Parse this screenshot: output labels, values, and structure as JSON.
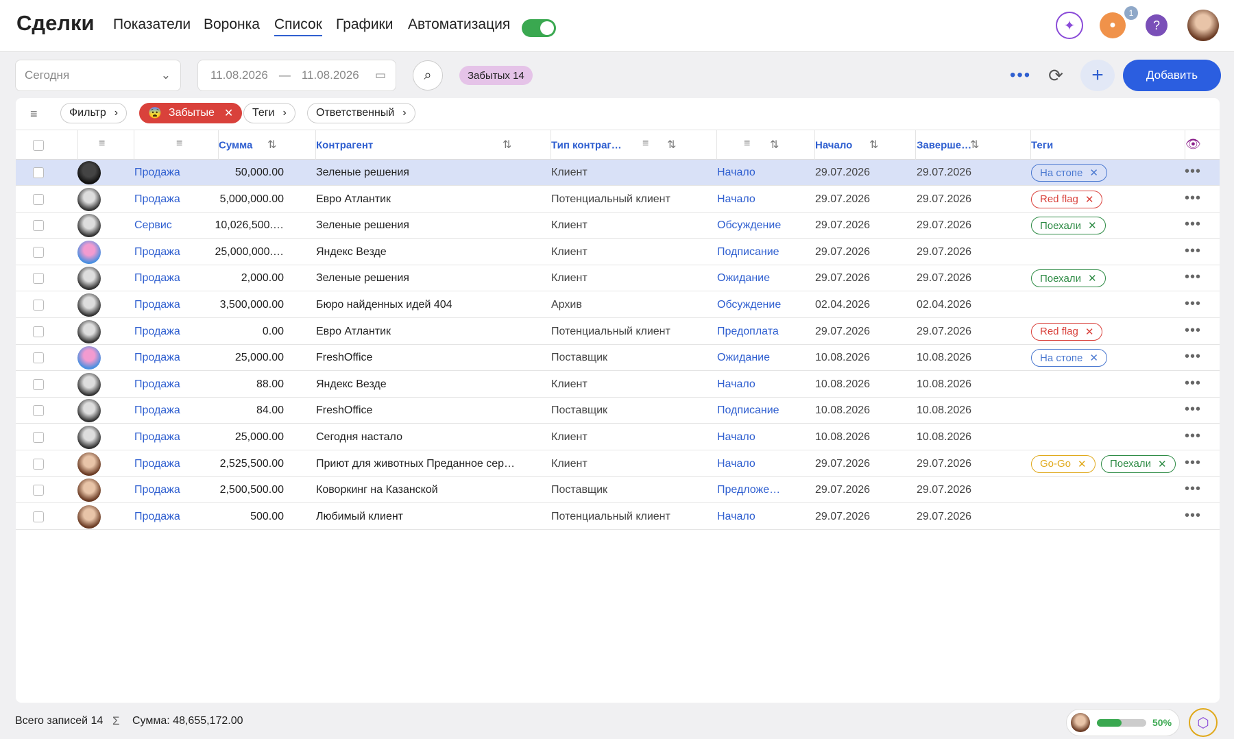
{
  "header": {
    "title": "Сделки",
    "tabs": [
      "Показатели",
      "Воронка",
      "Список",
      "Графики",
      "Автоматизация"
    ],
    "notification_count": "1"
  },
  "toolbar": {
    "period": "Сегодня",
    "date_from": "11.08.2026",
    "date_sep": "—",
    "date_to": "11.08.2026",
    "forgotten_badge": "Забытых 14",
    "add_button": "Добавить"
  },
  "filters": [
    "Фильтр",
    "Забытые",
    "Теги",
    "Ответственный"
  ],
  "table": {
    "columns": [
      "Сумма",
      "Контрагент",
      "Тип контраг…",
      "Начало",
      "Заверше…",
      "Теги"
    ],
    "rows": [
      {
        "deal_type": "Продажа",
        "amount": "50,000.00",
        "counterparty": "Зеленые решения",
        "counterparty_type": "Клиент",
        "stage": "Начало",
        "start": "29.07.2026",
        "end": "29.07.2026",
        "tags": [
          {
            "text": "На стопе",
            "color": "#4a78d0"
          }
        ]
      },
      {
        "deal_type": "Продажа",
        "amount": "5,000,000.00",
        "counterparty": "Евро Атлантик",
        "counterparty_type": "Потенциальный клиент",
        "stage": "Начало",
        "start": "29.07.2026",
        "end": "29.07.2026",
        "tags": [
          {
            "text": "Red flag",
            "color": "#d9413b"
          }
        ]
      },
      {
        "deal_type": "Сервис",
        "amount": "10,026,500.…",
        "counterparty": "Зеленые решения",
        "counterparty_type": "Клиент",
        "stage": "Обсуждение",
        "start": "29.07.2026",
        "end": "29.07.2026",
        "tags": [
          {
            "text": "Поехали",
            "color": "#2e8b45"
          }
        ]
      },
      {
        "deal_type": "Продажа",
        "amount": "25,000,000.…",
        "counterparty": "Яндекс Везде",
        "counterparty_type": "Клиент",
        "stage": "Подписание",
        "start": "29.07.2026",
        "end": "29.07.2026",
        "tags": []
      },
      {
        "deal_type": "Продажа",
        "amount": "2,000.00",
        "counterparty": "Зеленые решения",
        "counterparty_type": "Клиент",
        "stage": "Ожидание",
        "start": "29.07.2026",
        "end": "29.07.2026",
        "tags": [
          {
            "text": "Поехали",
            "color": "#2e8b45"
          }
        ]
      },
      {
        "deal_type": "Продажа",
        "amount": "3,500,000.00",
        "counterparty": "Бюро найденных идей 404",
        "counterparty_type": "Архив",
        "stage": "Обсуждение",
        "start": "02.04.2026",
        "end": "02.04.2026",
        "tags": []
      },
      {
        "deal_type": "Продажа",
        "amount": "0.00",
        "counterparty": "Евро Атлантик",
        "counterparty_type": "Потенциальный клиент",
        "stage": "Предоплата",
        "start": "29.07.2026",
        "end": "29.07.2026",
        "tags": [
          {
            "text": "Red flag",
            "color": "#d9413b"
          }
        ]
      },
      {
        "deal_type": "Продажа",
        "amount": "25,000.00",
        "counterparty": "FreshOffice",
        "counterparty_type": "Поставщик",
        "stage": "Ожидание",
        "start": "10.08.2026",
        "end": "10.08.2026",
        "tags": [
          {
            "text": "На стопе",
            "color": "#4a78d0"
          }
        ]
      },
      {
        "deal_type": "Продажа",
        "amount": "88.00",
        "counterparty": "Яндекс Везде",
        "counterparty_type": "Клиент",
        "stage": "Начало",
        "start": "10.08.2026",
        "end": "10.08.2026",
        "tags": []
      },
      {
        "deal_type": "Продажа",
        "amount": "84.00",
        "counterparty": "FreshOffice",
        "counterparty_type": "Поставщик",
        "stage": "Подписание",
        "start": "10.08.2026",
        "end": "10.08.2026",
        "tags": []
      },
      {
        "deal_type": "Продажа",
        "amount": "25,000.00",
        "counterparty": "Сегодня настало",
        "counterparty_type": "Клиент",
        "stage": "Начало",
        "start": "10.08.2026",
        "end": "10.08.2026",
        "tags": []
      },
      {
        "deal_type": "Продажа",
        "amount": "2,525,500.00",
        "counterparty": "Приют для животных Преданное сер…",
        "counterparty_type": "Клиент",
        "stage": "Начало",
        "start": "29.07.2026",
        "end": "29.07.2026",
        "tags": [
          {
            "text": "Go-Go",
            "color": "#e0a91b"
          },
          {
            "text": "Поехали",
            "color": "#2e8b45"
          }
        ]
      },
      {
        "deal_type": "Продажа",
        "amount": "2,500,500.00",
        "counterparty": "Коворкинг на Казанской",
        "counterparty_type": "Поставщик",
        "stage": "Предложе…",
        "start": "29.07.2026",
        "end": "29.07.2026",
        "tags": []
      },
      {
        "deal_type": "Продажа",
        "amount": "500.00",
        "counterparty": "Любимый клиент",
        "counterparty_type": "Потенциальный клиент",
        "stage": "Начало",
        "start": "29.07.2026",
        "end": "29.07.2026",
        "tags": []
      }
    ]
  },
  "footer": {
    "total": "Всего записей 14",
    "sum": "Сумма: 48,655,172.00",
    "progress": "50%"
  }
}
